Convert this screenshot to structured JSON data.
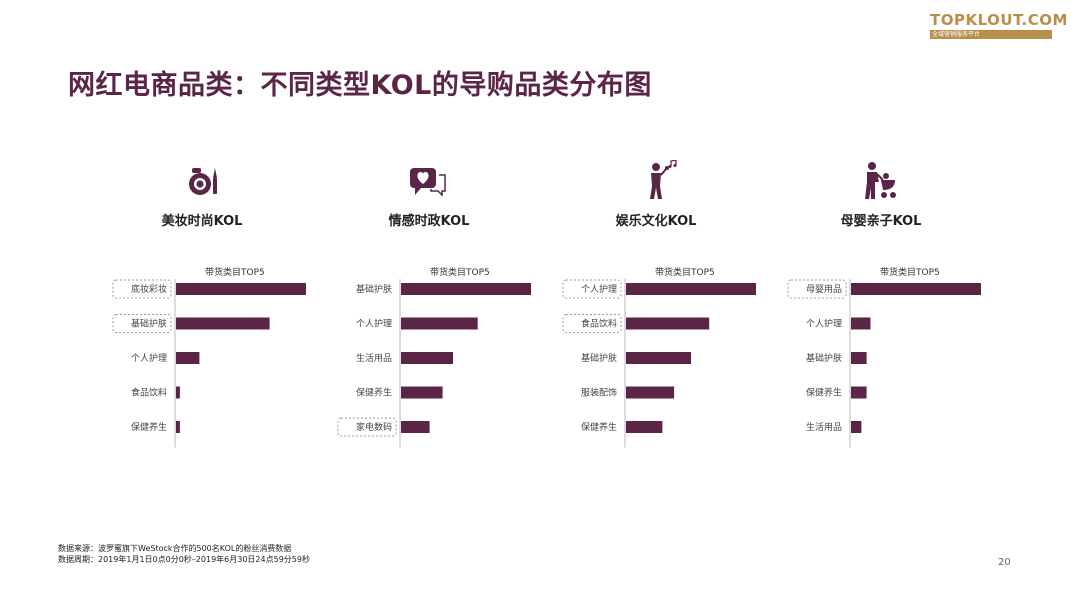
{
  "brand": {
    "logo_text": "TOPKLOUT.COM",
    "logo_sub": "全域营销服务平台",
    "logo_color": "#b78f4b"
  },
  "page": {
    "title": "网红电商品类：不同类型KOL的导购品类分布图",
    "title_color": "#5a2547",
    "bar_color": "#5a2547",
    "page_number": "20"
  },
  "footnote": {
    "source": "数据来源：波罗蜜旗下WeStock合作的500名KOL的粉丝消费数据",
    "period": "数据周期：2019年1月1日0点0分0秒–2019年6月30日24点59分59秒"
  },
  "panels": [
    {
      "heading": "美妆时尚KOL",
      "icon": "makeup-icon"
    },
    {
      "heading": "情感时政KOL",
      "icon": "chat-heart-icon"
    },
    {
      "heading": "娱乐文化KOL",
      "icon": "singer-icon"
    },
    {
      "heading": "母婴亲子KOL",
      "icon": "parent-stroller-icon"
    }
  ],
  "chart_data": [
    {
      "type": "bar",
      "orientation": "horizontal",
      "title": "带货类目TOP5",
      "categories": [
        "底妆彩妆",
        "基础护肤",
        "个人护理",
        "食品饮料",
        "保健养生"
      ],
      "values": [
        100,
        72,
        18,
        3,
        3
      ],
      "highlighted": [
        "底妆彩妆",
        "基础护肤"
      ],
      "xlim": [
        0,
        100
      ]
    },
    {
      "type": "bar",
      "orientation": "horizontal",
      "title": "带货类目TOP5",
      "categories": [
        "基础护肤",
        "个人护理",
        "生活用品",
        "保健养生",
        "家电数码"
      ],
      "values": [
        100,
        59,
        40,
        32,
        22
      ],
      "highlighted": [
        "家电数码"
      ],
      "xlim": [
        0,
        100
      ]
    },
    {
      "type": "bar",
      "orientation": "horizontal",
      "title": "带货类目TOP5",
      "categories": [
        "个人护理",
        "食品饮料",
        "基础护肤",
        "服装配饰",
        "保健养生"
      ],
      "values": [
        100,
        64,
        50,
        37,
        28
      ],
      "highlighted": [
        "个人护理",
        "食品饮料"
      ],
      "xlim": [
        0,
        100
      ]
    },
    {
      "type": "bar",
      "orientation": "horizontal",
      "title": "带货类目TOP5",
      "categories": [
        "母婴用品",
        "个人护理",
        "基础护肤",
        "保健养生",
        "生活用品"
      ],
      "values": [
        100,
        15,
        12,
        12,
        8
      ],
      "highlighted": [
        "母婴用品"
      ],
      "xlim": [
        0,
        100
      ]
    }
  ]
}
